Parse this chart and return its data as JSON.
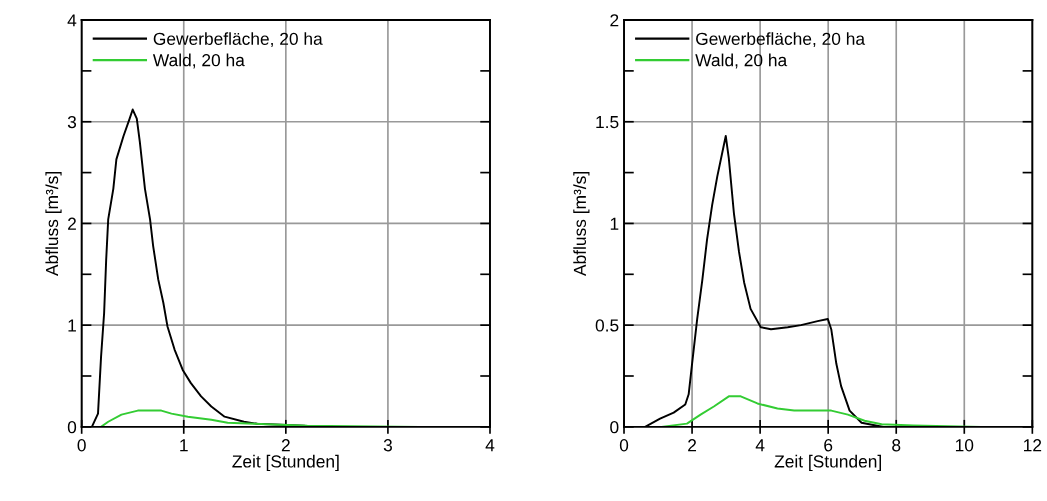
{
  "chart_data": [
    {
      "type": "line",
      "xlabel": "Zeit [Stunden]",
      "ylabel": "Abfluss [m³/s]",
      "xlim": [
        0,
        4
      ],
      "xticks": [
        0,
        1,
        2,
        3,
        4
      ],
      "ylim": [
        0,
        4
      ],
      "yticks": [
        0,
        {
          "value": 0.5,
          "label": null
        },
        1,
        {
          "value": 1.5,
          "label": null
        },
        2,
        {
          "value": 2.5,
          "label": null
        },
        3,
        {
          "value": 3.5,
          "label": null
        },
        4
      ],
      "grid": true,
      "legend": "top left",
      "series": [
        {
          "name": "Gewerbefläche, 20 ha",
          "color": "#000000",
          "x": [
            0.1,
            0.16,
            0.19,
            0.22,
            0.24,
            0.26,
            0.31,
            0.34,
            0.41,
            0.47,
            0.5,
            0.54,
            0.57,
            0.62,
            0.67,
            0.7,
            0.75,
            0.8,
            0.84,
            0.91,
            0.99,
            1.07,
            1.17,
            1.27,
            1.4,
            1.59,
            1.72,
            2.18,
            2.25
          ],
          "values": [
            0,
            0.13,
            0.69,
            1.12,
            1.64,
            2.04,
            2.34,
            2.63,
            2.86,
            3.03,
            3.12,
            3.03,
            2.8,
            2.34,
            2.04,
            1.78,
            1.45,
            1.22,
            0.99,
            0.76,
            0.56,
            0.43,
            0.3,
            0.2,
            0.1,
            0.05,
            0.03,
            0.01,
            0
          ]
        },
        {
          "name": "Wald, 20 ha",
          "color": "#33cc33",
          "x": [
            0,
            0.19,
            0.26,
            0.39,
            0.55,
            0.78,
            0.88,
            1.04,
            1.27,
            1.43,
            1.69,
            2.21,
            3.31,
            3.63
          ],
          "values": [
            0,
            0,
            0.05,
            0.12,
            0.16,
            0.16,
            0.13,
            0.1,
            0.07,
            0.04,
            0.03,
            0.01,
            0,
            0
          ]
        }
      ]
    },
    {
      "type": "line",
      "xlabel": "Zeit [Stunden]",
      "ylabel": "Abfluss [m³/s]",
      "xlim": [
        0,
        12
      ],
      "xticks": [
        0,
        2,
        4,
        6,
        8,
        10,
        12
      ],
      "ylim": [
        0,
        2
      ],
      "yticks": [
        0,
        {
          "value": 0.25,
          "label": null
        },
        0.5,
        {
          "value": 0.75,
          "label": null
        },
        1,
        {
          "value": 1.25,
          "label": null
        },
        1.5,
        {
          "value": 1.75,
          "label": null
        },
        2
      ],
      "grid": true,
      "legend": "top left",
      "series": [
        {
          "name": "Gewerbefläche, 20 ha",
          "color": "#000000",
          "x": [
            0.62,
            1.06,
            1.46,
            1.8,
            1.9,
            2.0,
            2.15,
            2.3,
            2.44,
            2.59,
            2.74,
            2.89,
            2.99,
            3.08,
            3.23,
            3.38,
            3.53,
            3.72,
            4.02,
            4.32,
            4.81,
            5.2,
            5.69,
            5.99,
            6.09,
            6.24,
            6.38,
            6.63,
            6.98,
            7.6
          ],
          "values": [
            0,
            0.04,
            0.07,
            0.11,
            0.16,
            0.31,
            0.53,
            0.72,
            0.92,
            1.09,
            1.23,
            1.35,
            1.43,
            1.32,
            1.05,
            0.86,
            0.71,
            0.58,
            0.49,
            0.48,
            0.49,
            0.5,
            0.52,
            0.53,
            0.48,
            0.31,
            0.2,
            0.08,
            0.02,
            0
          ]
        },
        {
          "name": "Wald, 20 ha",
          "color": "#33cc33",
          "x": [
            0,
            1.1,
            1.85,
            2.25,
            2.64,
            3.08,
            3.43,
            3.92,
            4.51,
            5.0,
            6.09,
            6.58,
            7.07,
            7.57,
            8.5,
            10.47
          ],
          "values": [
            0,
            0,
            0.016,
            0.06,
            0.1,
            0.15,
            0.15,
            0.115,
            0.09,
            0.08,
            0.08,
            0.06,
            0.03,
            0.013,
            0.007,
            0
          ]
        }
      ]
    }
  ]
}
